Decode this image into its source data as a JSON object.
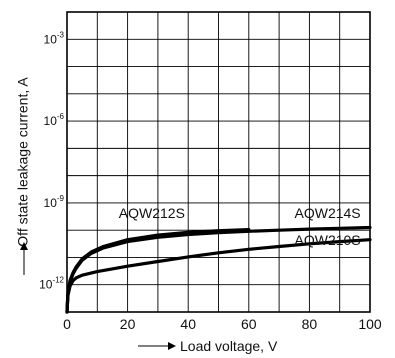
{
  "chart_data": {
    "type": "line",
    "xlabel": "Load voltage, V",
    "ylabel": "Off state leakage current, A",
    "xlim": [
      0,
      100
    ],
    "ylim_log10": [
      -13,
      -2
    ],
    "y_scale": "log",
    "grid": true,
    "x_ticks": [
      "0",
      "20",
      "40",
      "60",
      "80",
      "100"
    ],
    "y_ticks": [
      {
        "value": -3,
        "label": "10",
        "exp": "-3"
      },
      {
        "value": -6,
        "label": "10",
        "exp": "-6"
      },
      {
        "value": -9,
        "label": "10",
        "exp": "-9"
      },
      {
        "value": -12,
        "label": "10",
        "exp": "-12"
      }
    ],
    "series": [
      {
        "name": "AQW212S",
        "x": [
          0,
          0.3,
          1,
          2,
          3,
          5,
          8,
          12,
          20,
          30,
          40,
          50,
          60
        ],
        "log10_y": [
          -13,
          -12.3,
          -11.85,
          -11.55,
          -11.35,
          -11.05,
          -10.8,
          -10.6,
          -10.35,
          -10.18,
          -10.08,
          -10.02,
          -9.98
        ]
      },
      {
        "name": "AQW214S",
        "x": [
          0,
          0.3,
          1,
          2,
          3,
          5,
          8,
          12,
          20,
          30,
          40,
          50,
          60,
          70,
          80,
          90,
          100
        ],
        "log10_y": [
          -13,
          -12.35,
          -11.9,
          -11.6,
          -11.4,
          -11.1,
          -10.85,
          -10.65,
          -10.42,
          -10.26,
          -10.16,
          -10.09,
          -10.04,
          -10.0,
          -9.96,
          -9.93,
          -9.9
        ]
      },
      {
        "name": "AQW210S",
        "x": [
          0,
          0.3,
          1,
          2,
          3,
          5,
          10,
          20,
          30,
          40,
          50,
          60,
          70,
          80,
          90,
          100
        ],
        "log10_y": [
          -13,
          -12.4,
          -12.05,
          -11.85,
          -11.75,
          -11.65,
          -11.52,
          -11.32,
          -11.15,
          -10.98,
          -10.83,
          -10.7,
          -10.6,
          -10.5,
          -10.42,
          -10.35
        ]
      }
    ]
  }
}
